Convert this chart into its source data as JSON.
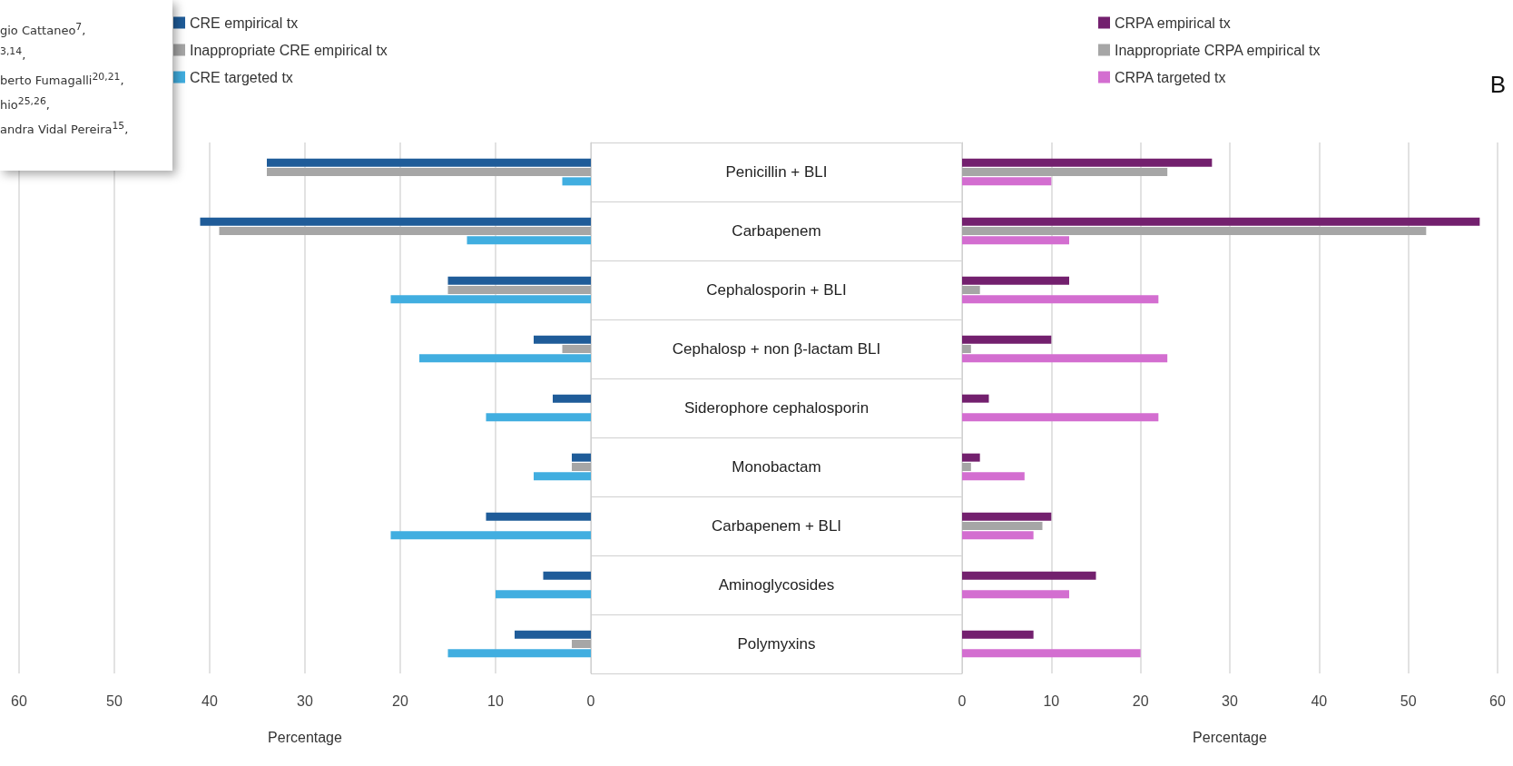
{
  "chart_data": [
    {
      "type": "bar",
      "orientation": "horizontal",
      "xlabel": "Percentage",
      "categories": [
        "Penicillin + BLI",
        "Carbapenem",
        "Cephalosporin + BLI",
        "Cephalosp + non β-lactam BLI",
        "Siderophore cephalosporin",
        "Monobactam",
        "Carbapenem + BLI",
        "Aminoglycosides",
        "Polymyxins"
      ],
      "series": [
        {
          "name": "CRE empirical tx",
          "color": "#1f5c99",
          "values": [
            34,
            41,
            15,
            6,
            4,
            2,
            11,
            5,
            8
          ]
        },
        {
          "name": "Inappropriate CRE empirical tx",
          "color": "#a6a6a6",
          "values": [
            34,
            39,
            15,
            3,
            0,
            2,
            0,
            0,
            2
          ]
        },
        {
          "name": "CRE targeted tx",
          "color": "#41aee0",
          "values": [
            3,
            13,
            21,
            18,
            11,
            6,
            21,
            10,
            15
          ]
        }
      ],
      "xlim": [
        60,
        0
      ],
      "xticks": [
        0,
        10,
        20,
        30,
        40,
        50,
        60
      ],
      "grid": "x",
      "legend": "top",
      "annotations": [
        "gio Cattaneo$^{7}$,",
        "$^{3,14}$,",
        "berto Fumagalli$^{20,21}$,",
        "hio$^{25,26}$,",
        "andra Vidal Pereira$^{15}$,"
      ]
    },
    {
      "type": "bar",
      "orientation": "horizontal",
      "xlabel": "Percentage",
      "categories": [
        null,
        null,
        null,
        null,
        null,
        null,
        null,
        null,
        null
      ],
      "series": [
        {
          "name": "CRPA empirical tx",
          "color": "#73206e",
          "values": [
            28,
            58,
            12,
            10,
            3,
            2,
            10,
            15,
            8
          ]
        },
        {
          "name": "Inappropriate CRPA empirical tx",
          "color": "#a6a6a6",
          "values": [
            23,
            52,
            2,
            1,
            0,
            1,
            9,
            0,
            0
          ]
        },
        {
          "name": "CRPA targeted tx",
          "color": "#d36ed0",
          "values": [
            10,
            12,
            22,
            23,
            22,
            7,
            8,
            12,
            20
          ]
        }
      ],
      "xlim": [
        0,
        60
      ],
      "xticks": [
        0,
        10,
        20,
        30,
        40,
        50,
        60
      ],
      "grid": "x",
      "legend": "top",
      "tick_labels": "x",
      "annotations": [
        "B"
      ]
    }
  ]
}
